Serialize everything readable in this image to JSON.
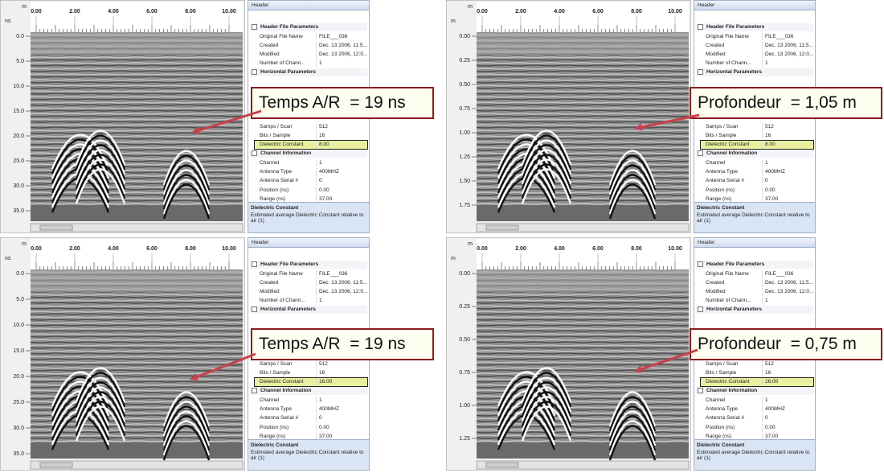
{
  "panels": [
    {
      "x_axis": {
        "unit": "m",
        "ticks": [
          "0.00",
          "2.00",
          "4.00",
          "6.00",
          "8.00",
          "10.00"
        ]
      },
      "y_axis": {
        "unit": "ns",
        "ticks": [
          "0.0",
          "5.0",
          "10.0",
          "15.0",
          "20.0",
          "25.0",
          "30.0",
          "35.0"
        ]
      },
      "grid": {
        "title": "Header",
        "sections": [
          {
            "title": "Header File Parameters",
            "rows": [
              {
                "name": "Original File Name",
                "value": "FILE___036"
              },
              {
                "name": "Created",
                "value": "Dec. 13 2006, 11:5..."
              },
              {
                "name": "Modified",
                "value": "Dec. 13 2006, 12:0..."
              },
              {
                "name": "Number of Chann...",
                "value": "1"
              }
            ]
          },
          {
            "title": "Horizontal Parameters",
            "rows": [
              {
                "name": "Samps / Scan",
                "value": "512"
              },
              {
                "name": "Bits / Sample",
                "value": "16"
              },
              {
                "name": "Dielectric Constant",
                "value": "8.00",
                "highlight": true
              }
            ]
          },
          {
            "title": "Channel Information",
            "rows": [
              {
                "name": "Channel",
                "value": "1"
              },
              {
                "name": "Antenna Type",
                "value": "400MHZ"
              },
              {
                "name": "Antenna Serial #",
                "value": "0"
              },
              {
                "name": "Position (ns)",
                "value": "0.00"
              },
              {
                "name": "Range (ns)",
                "value": "37.00"
              }
            ]
          }
        ]
      },
      "description": {
        "title": "Dielectric Constant",
        "text": "Estimated average Dielectric Constant relative to air (1)"
      },
      "callout": "Temps A/R  = 19 ns"
    },
    {
      "x_axis": {
        "unit": "m",
        "ticks": [
          "0.00",
          "2.00",
          "4.00",
          "6.00",
          "8.00",
          "10.00"
        ]
      },
      "y_axis": {
        "unit": "m",
        "ticks": [
          "0.00",
          "0.25",
          "0.50",
          "0.75",
          "1.00",
          "1.25",
          "1.50",
          "1.75"
        ]
      },
      "grid": {
        "title": "Header",
        "sections": [
          {
            "title": "Header File Parameters",
            "rows": [
              {
                "name": "Original File Name",
                "value": "FILE___036"
              },
              {
                "name": "Created",
                "value": "Dec. 13 2006, 11:5..."
              },
              {
                "name": "Modified",
                "value": "Dec. 13 2006, 12:0..."
              },
              {
                "name": "Number of Chann...",
                "value": "1"
              }
            ]
          },
          {
            "title": "Horizontal Parameters",
            "rows": [
              {
                "name": "Samps / Scan",
                "value": "512"
              },
              {
                "name": "Bits / Sample",
                "value": "16"
              },
              {
                "name": "Dielectric Constant",
                "value": "8.00",
                "highlight": true
              }
            ]
          },
          {
            "title": "Channel Information",
            "rows": [
              {
                "name": "Channel",
                "value": "1"
              },
              {
                "name": "Antenna Type",
                "value": "400MHZ"
              },
              {
                "name": "Antenna Serial #",
                "value": "0"
              },
              {
                "name": "Position (ns)",
                "value": "0.00"
              },
              {
                "name": "Range (ns)",
                "value": "37.00"
              }
            ]
          }
        ]
      },
      "description": {
        "title": "Dielectric Constant",
        "text": "Estimated average Dielectric Constant relative to air (1)"
      },
      "callout": "Profondeur  = 1,05 m"
    },
    {
      "x_axis": {
        "unit": "m",
        "ticks": [
          "0.00",
          "2.00",
          "4.00",
          "6.00",
          "8.00",
          "10.00"
        ]
      },
      "y_axis": {
        "unit": "ns",
        "ticks": [
          "0.0",
          "5.0",
          "10.0",
          "15.0",
          "20.0",
          "25.0",
          "30.0",
          "35.0"
        ]
      },
      "grid": {
        "title": "Header",
        "sections": [
          {
            "title": "Header File Parameters",
            "rows": [
              {
                "name": "Original File Name",
                "value": "FILE___036"
              },
              {
                "name": "Created",
                "value": "Dec. 13 2006, 11:5..."
              },
              {
                "name": "Modified",
                "value": "Dec. 13 2006, 12:0..."
              },
              {
                "name": "Number of Chann...",
                "value": "1"
              }
            ]
          },
          {
            "title": "Horizontal Parameters",
            "rows": [
              {
                "name": "Samps / Scan",
                "value": "512"
              },
              {
                "name": "Bits / Sample",
                "value": "16"
              },
              {
                "name": "Dielectric Constant",
                "value": "16.00",
                "highlight": true
              }
            ]
          },
          {
            "title": "Channel Information",
            "rows": [
              {
                "name": "Channel",
                "value": "1"
              },
              {
                "name": "Antenna Type",
                "value": "400MHZ"
              },
              {
                "name": "Antenna Serial #",
                "value": "0"
              },
              {
                "name": "Position (ns)",
                "value": "0.00"
              },
              {
                "name": "Range (ns)",
                "value": "37.00"
              }
            ]
          }
        ]
      },
      "description": {
        "title": "Dielectric Constant",
        "text": "Estimated average Dielectric Constant relative to air (1)"
      },
      "callout": "Temps A/R  = 19 ns"
    },
    {
      "x_axis": {
        "unit": "m",
        "ticks": [
          "0.00",
          "2.00",
          "4.00",
          "6.00",
          "8.00",
          "10.00"
        ]
      },
      "y_axis": {
        "unit": "m",
        "ticks": [
          "0.00",
          "0.25",
          "0.50",
          "0.75",
          "1.00",
          "1.25"
        ]
      },
      "grid": {
        "title": "Header",
        "sections": [
          {
            "title": "Header File Parameters",
            "rows": [
              {
                "name": "Original File Name",
                "value": "FILE___036"
              },
              {
                "name": "Created",
                "value": "Dec. 13 2006, 11:5..."
              },
              {
                "name": "Modified",
                "value": "Dec. 13 2006, 12:0..."
              },
              {
                "name": "Number of Chann...",
                "value": "1"
              }
            ]
          },
          {
            "title": "Horizontal Parameters",
            "rows": [
              {
                "name": "Samps / Scan",
                "value": "512"
              },
              {
                "name": "Bits / Sample",
                "value": "16"
              },
              {
                "name": "Dielectric Constant",
                "value": "16.00",
                "highlight": true
              }
            ]
          },
          {
            "title": "Channel Information",
            "rows": [
              {
                "name": "Channel",
                "value": "1"
              },
              {
                "name": "Antenna Type",
                "value": "400MHZ"
              },
              {
                "name": "Antenna Serial #",
                "value": "0"
              },
              {
                "name": "Position (ns)",
                "value": "0.00"
              },
              {
                "name": "Range (ns)",
                "value": "37.00"
              }
            ]
          }
        ]
      },
      "description": {
        "title": "Dielectric Constant",
        "text": "Estimated average Dielectric Constant relative to air (1)"
      },
      "callout": "Profondeur  = 0,75 m"
    }
  ]
}
